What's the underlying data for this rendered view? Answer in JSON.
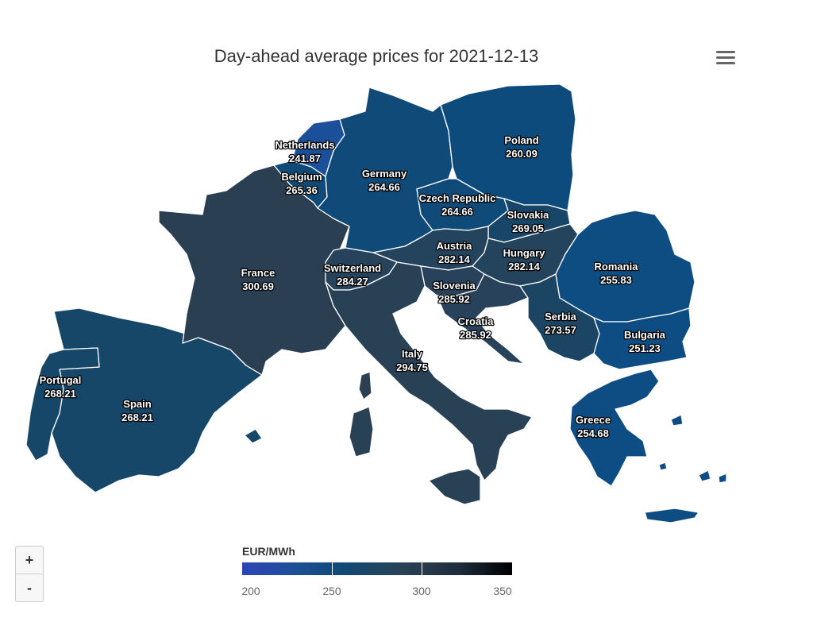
{
  "title": "Day-ahead average prices for 2021-12-13",
  "legend": {
    "title": "EUR/MWh",
    "ticks": [
      "200",
      "250",
      "300",
      "350"
    ]
  },
  "zoom": {
    "in_label": "+",
    "out_label": "-"
  },
  "icons": {
    "menu": "hamburger-menu-icon"
  },
  "colors": {
    "low": "#2d44b8",
    "mid_low": "#0f4a78",
    "mid": "#2a4154",
    "high": "#000000",
    "border": "#ffffff",
    "title": "#333333"
  },
  "countries": [
    {
      "name": "Netherlands",
      "price": "241.87",
      "color": "#1b4f9a"
    },
    {
      "name": "Belgium",
      "price": "265.36",
      "color": "#0f4a79"
    },
    {
      "name": "Germany",
      "price": "264.66",
      "color": "#0f4a79"
    },
    {
      "name": "Poland",
      "price": "260.09",
      "color": "#0e4b7d"
    },
    {
      "name": "Czech Republic",
      "price": "264.66",
      "color": "#0f4a79"
    },
    {
      "name": "Slovakia",
      "price": "269.05",
      "color": "#174668"
    },
    {
      "name": "Austria",
      "price": "282.14",
      "color": "#24435c"
    },
    {
      "name": "Hungary",
      "price": "282.14",
      "color": "#24435c"
    },
    {
      "name": "Romania",
      "price": "255.83",
      "color": "#0e4d82"
    },
    {
      "name": "France",
      "price": "300.69",
      "color": "#2a3f52"
    },
    {
      "name": "Switzerland",
      "price": "284.27",
      "color": "#26435b"
    },
    {
      "name": "Slovenia",
      "price": "285.92",
      "color": "#27425a"
    },
    {
      "name": "Croatia",
      "price": "285.92",
      "color": "#27425a"
    },
    {
      "name": "Serbia",
      "price": "273.57",
      "color": "#1b4563"
    },
    {
      "name": "Bulgaria",
      "price": "251.23",
      "color": "#0e4d84"
    },
    {
      "name": "Italy",
      "price": "294.75",
      "color": "#284155"
    },
    {
      "name": "Portugal",
      "price": "268.21",
      "color": "#164769"
    },
    {
      "name": "Spain",
      "price": "268.21",
      "color": "#164769"
    },
    {
      "name": "Greece",
      "price": "254.68",
      "color": "#0e4d83"
    }
  ]
}
